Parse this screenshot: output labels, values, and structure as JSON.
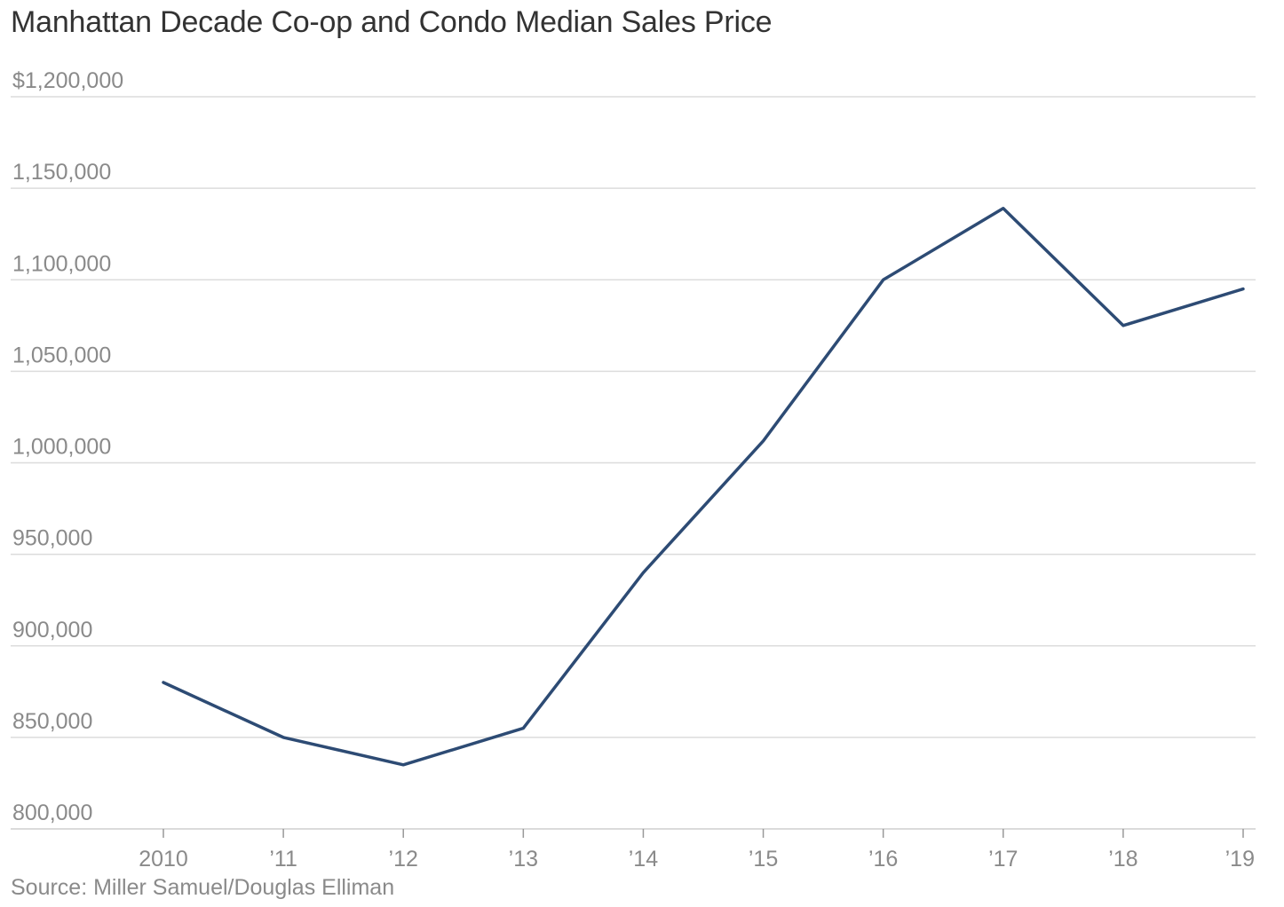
{
  "chart_data": {
    "type": "line",
    "title": "Manhattan Decade Co-op and Condo Median Sales Price",
    "source": "Source: Miller Samuel/Douglas Elliman",
    "xlabel": "",
    "ylabel": "",
    "ylim": [
      800000,
      1200000
    ],
    "y_ticks": [
      800000,
      850000,
      900000,
      950000,
      1000000,
      1050000,
      1100000,
      1150000,
      1200000
    ],
    "y_tick_labels": [
      "800,000",
      "850,000",
      "900,000",
      "950,000",
      "1,000,000",
      "1,050,000",
      "1,100,000",
      "1,150,000",
      "$1,200,000"
    ],
    "x": [
      2010,
      2011,
      2012,
      2013,
      2014,
      2015,
      2016,
      2017,
      2018,
      2019
    ],
    "x_tick_labels": [
      "2010",
      "’11",
      "’12",
      "’13",
      "’14",
      "’15",
      "’16",
      "’17",
      "’18",
      "’19"
    ],
    "grid": true,
    "legend": "none",
    "series": [
      {
        "name": "Median Sales Price",
        "color": "#2d4b74",
        "values": [
          880000,
          850000,
          835000,
          855000,
          940000,
          1012000,
          1100000,
          1139000,
          1075000,
          1095000
        ]
      }
    ]
  }
}
